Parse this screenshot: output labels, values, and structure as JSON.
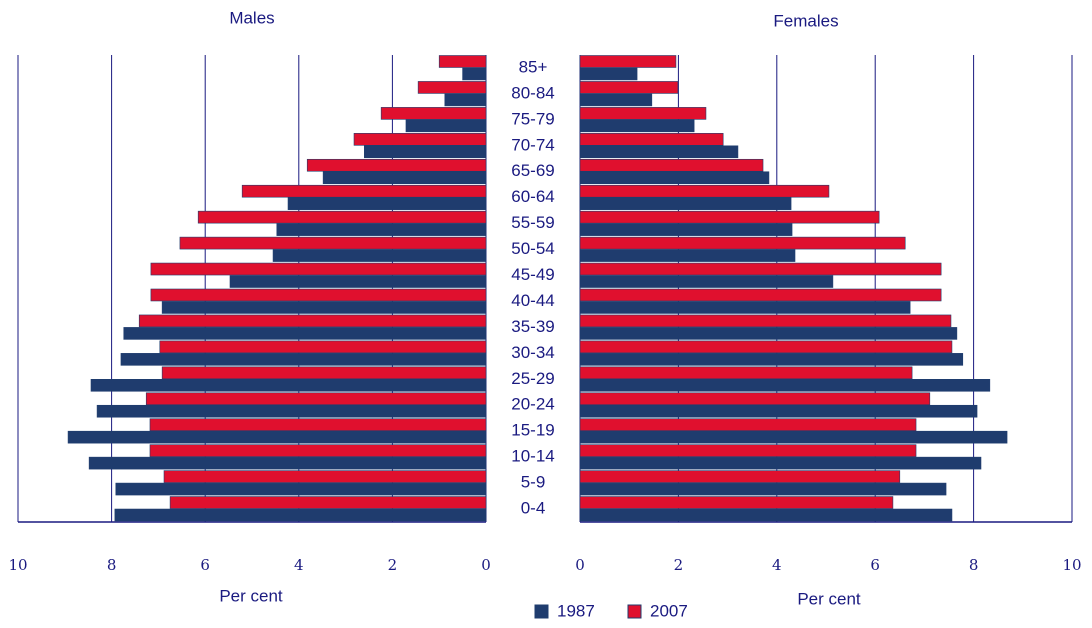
{
  "chart_data": {
    "type": "pyramid",
    "categories": [
      "0-4",
      "5-9",
      "10-14",
      "15-19",
      "20-24",
      "25-29",
      "30-34",
      "35-39",
      "40-44",
      "45-49",
      "50-54",
      "55-59",
      "60-64",
      "65-69",
      "70-74",
      "75-79",
      "80-84",
      "85+"
    ],
    "panels": [
      {
        "title": "Males",
        "xlabel": "Per cent",
        "reversed": true,
        "xlim": [
          0,
          10
        ],
        "xticks": [
          0,
          2,
          4,
          6,
          8,
          10
        ],
        "grid": true,
        "series": [
          {
            "name": "1987",
            "color": "#1f3c6e",
            "values": [
              7.93,
              7.91,
              8.48,
              8.93,
              8.31,
              8.44,
              7.8,
              7.74,
              6.92,
              5.47,
              4.55,
              4.47,
              4.23,
              3.48,
              2.6,
              1.71,
              0.88,
              0.5
            ]
          },
          {
            "name": "2007",
            "color": "#e0102e",
            "values": [
              6.75,
              6.88,
              7.18,
              7.18,
              7.26,
              6.92,
              6.97,
              7.41,
              7.16,
              7.16,
              6.54,
              6.15,
              5.21,
              3.82,
              2.82,
              2.24,
              1.45,
              1.0
            ]
          }
        ]
      },
      {
        "title": "Females",
        "xlabel": "Per cent",
        "reversed": false,
        "xlim": [
          0,
          10
        ],
        "xticks": [
          0,
          2,
          4,
          6,
          8,
          10
        ],
        "grid": true,
        "series": [
          {
            "color": "#1f3c6e",
            "values": [
              7.56,
              7.44,
              8.15,
              8.68,
              8.07,
              8.33,
              7.78,
              7.66,
              6.71,
              5.14,
              4.37,
              4.31,
              4.29,
              3.84,
              3.21,
              2.32,
              1.46,
              1.16
            ]
          },
          {
            "color": "#e0102e",
            "values": [
              6.36,
              6.5,
              6.83,
              6.83,
              7.11,
              6.75,
              7.56,
              7.54,
              7.34,
              7.34,
              6.61,
              6.08,
              5.06,
              3.72,
              2.91,
              2.56,
              1.99,
              1.95
            ]
          }
        ]
      }
    ]
  }
}
